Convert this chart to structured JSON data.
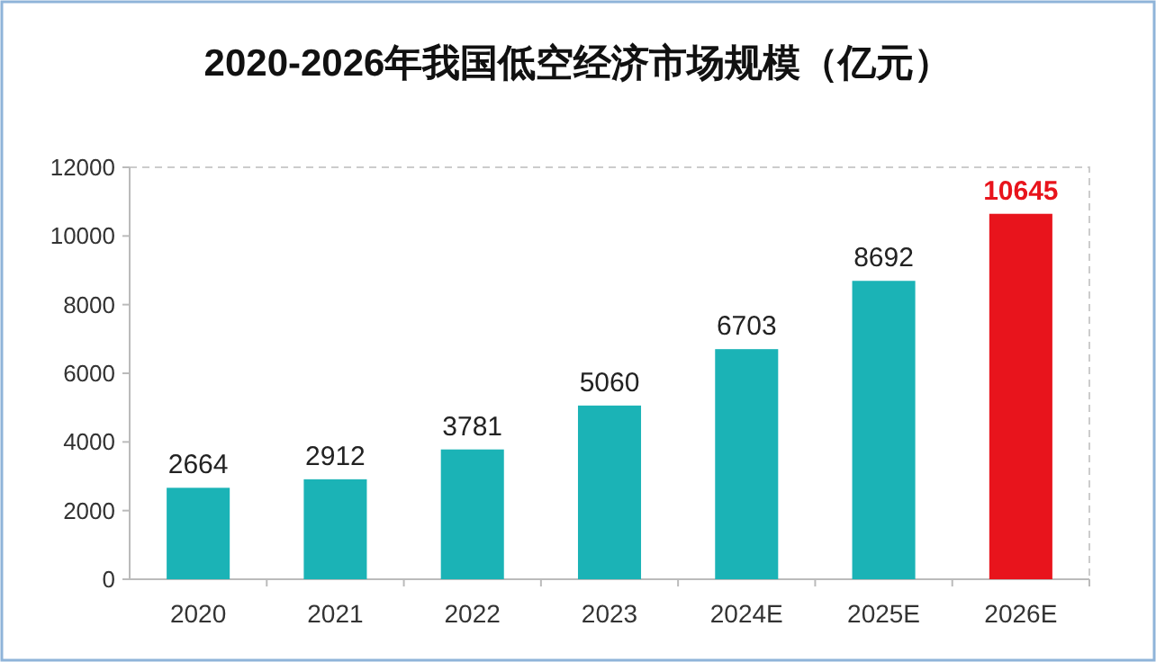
{
  "chart_data": {
    "type": "bar",
    "title": "2020-2026年我国低空经济市场规模（亿元）",
    "categories": [
      "2020",
      "2021",
      "2022",
      "2023",
      "2024E",
      "2025E",
      "2026E"
    ],
    "values": [
      2664,
      2912,
      3781,
      5060,
      6703,
      8692,
      10645
    ],
    "colors": [
      "#1bb3b6",
      "#1bb3b6",
      "#1bb3b6",
      "#1bb3b6",
      "#1bb3b6",
      "#1bb3b6",
      "#e8141c"
    ],
    "ylim": [
      0,
      12000
    ],
    "yticks": [
      0,
      2000,
      4000,
      6000,
      8000,
      10000,
      12000
    ],
    "data_labels": true,
    "grid": false
  }
}
